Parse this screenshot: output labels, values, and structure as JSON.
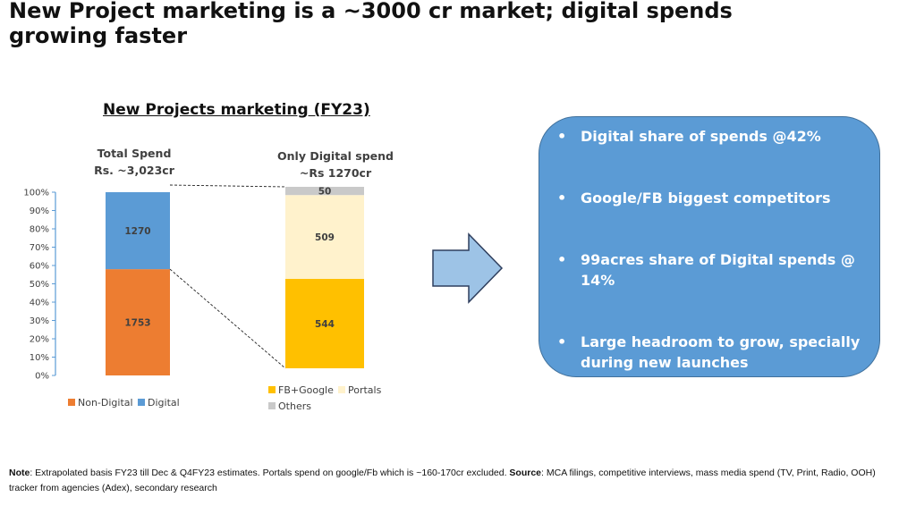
{
  "slide": {
    "title": "New Project marketing is a ~3000 cr market; digital spends growing faster",
    "note": {
      "note_label": "Note",
      "note_text": ": Extrapolated basis FY23 till Dec & Q4FY23 estimates. Portals spend on google/Fb which is ~160-170cr excluded. ",
      "source_label": "Source",
      "source_text": ": MCA filings, competitive interviews, mass media spend (TV, Print, Radio, OOH) tracker from agencies (Adex), secondary research"
    }
  },
  "chart_data": {
    "title": "New Projects marketing (FY23)",
    "type": "bar",
    "stacked": "percent",
    "y_ticks": [
      "0%",
      "10%",
      "20%",
      "30%",
      "40%",
      "50%",
      "60%",
      "70%",
      "80%",
      "90%",
      "100%"
    ],
    "ylim": [
      0,
      100
    ],
    "bars": [
      {
        "label_line1": "Total Spend",
        "label_line2": "Rs. ~3,023cr",
        "segments": [
          {
            "name": "Non-Digital",
            "value": 1753,
            "color": "#ed7d31"
          },
          {
            "name": "Digital",
            "value": 1270,
            "color": "#5b9bd5"
          }
        ]
      },
      {
        "label_line1": "Only Digital spend",
        "label_line2": "~Rs 1270cr",
        "segments": [
          {
            "name": "FB+Google",
            "value": 544,
            "color": "#ffc000"
          },
          {
            "name": "Portals",
            "value": 509,
            "color": "#fff2cc"
          },
          {
            "name": "Others",
            "value": 50,
            "color": "#c9c9c9"
          }
        ]
      }
    ],
    "legend_left": [
      {
        "name": "Non-Digital",
        "color": "#ed7d31"
      },
      {
        "name": "Digital",
        "color": "#5b9bd5"
      }
    ],
    "legend_right": [
      {
        "name": "FB+Google",
        "color": "#ffc000"
      },
      {
        "name": "Portals",
        "color": "#fff2cc"
      },
      {
        "name": "Others",
        "color": "#c9c9c9"
      }
    ]
  },
  "callout": {
    "bullets": [
      "Digital share of spends @42%",
      "Google/FB  biggest competitors",
      "99acres share of Digital spends @ 14%",
      "Large headroom to grow, specially during new launches"
    ]
  },
  "colors": {
    "callout_fill": "#5b9bd5",
    "arrow_fill": "#9dc3e6",
    "axis": "#5b9bd5"
  }
}
